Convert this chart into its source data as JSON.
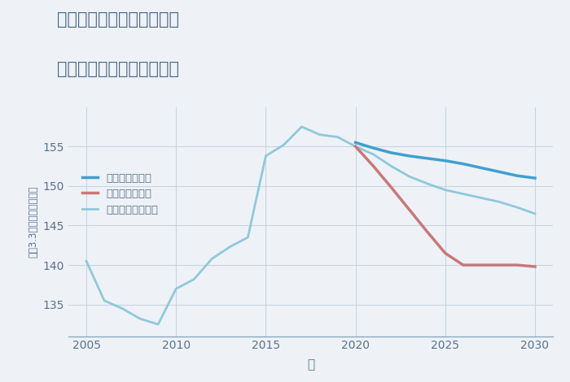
{
  "title_line1": "兵庫県西宮市今津二葉町の",
  "title_line2": "中古マンションの価格推移",
  "xlabel": "年",
  "ylabel": "坪（3.3㎡）単価（万円）",
  "background_color": "#eef2f6",
  "plot_background": "#eef2f6",
  "grid_color": "#c5d5e5",
  "good_scenario": {
    "label": "グッドシナリオ",
    "color": "#3fa0d0",
    "x": [
      2020,
      2021,
      2022,
      2023,
      2024,
      2025,
      2026,
      2027,
      2028,
      2029,
      2030
    ],
    "y": [
      155.5,
      154.8,
      154.2,
      153.8,
      153.5,
      153.2,
      152.8,
      152.3,
      151.8,
      151.3,
      151.0
    ]
  },
  "bad_scenario": {
    "label": "バッドシナリオ",
    "color": "#c87878",
    "x": [
      2020,
      2021,
      2022,
      2023,
      2024,
      2025,
      2026,
      2027,
      2028,
      2029,
      2030
    ],
    "y": [
      155.0,
      152.5,
      149.8,
      147.0,
      144.2,
      141.5,
      140.0,
      140.0,
      140.0,
      140.0,
      139.8
    ]
  },
  "normal_scenario": {
    "label": "ノーマルシナリオ",
    "color": "#90c8dc",
    "x": [
      2005,
      2006,
      2007,
      2008,
      2009,
      2010,
      2011,
      2012,
      2013,
      2014,
      2015,
      2016,
      2017,
      2018,
      2019,
      2020,
      2021,
      2022,
      2023,
      2024,
      2025,
      2026,
      2027,
      2028,
      2029,
      2030
    ],
    "y": [
      140.5,
      135.5,
      134.5,
      133.2,
      132.5,
      137.0,
      138.2,
      140.8,
      142.3,
      143.5,
      153.8,
      155.2,
      157.5,
      156.5,
      156.2,
      155.0,
      154.0,
      152.5,
      151.2,
      150.3,
      149.5,
      149.0,
      148.5,
      148.0,
      147.3,
      146.5
    ]
  },
  "xlim": [
    2004,
    2031
  ],
  "ylim": [
    131,
    160
  ],
  "yticks": [
    135,
    140,
    145,
    150,
    155
  ],
  "xticks": [
    2005,
    2010,
    2015,
    2020,
    2025,
    2030
  ]
}
